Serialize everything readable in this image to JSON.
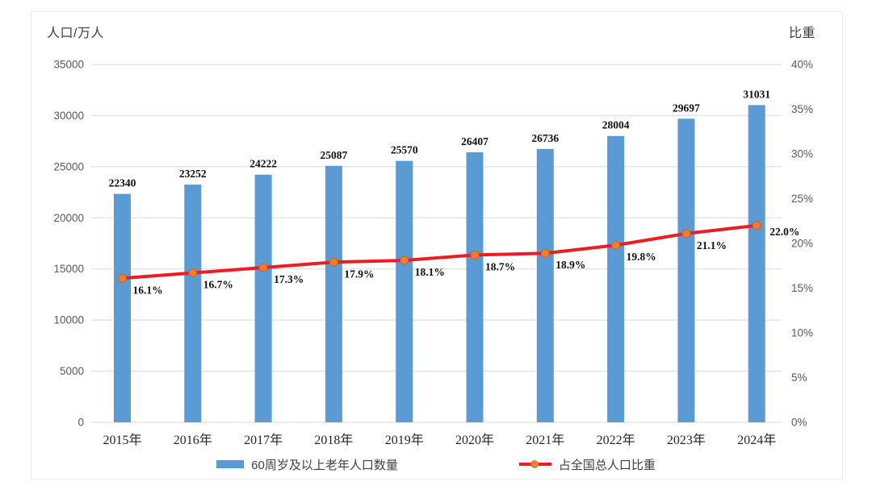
{
  "chart_data": {
    "type": "bar+line",
    "categories": [
      "2015年",
      "2016年",
      "2017年",
      "2018年",
      "2019年",
      "2020年",
      "2021年",
      "2022年",
      "2023年",
      "2024年"
    ],
    "series": [
      {
        "name": "60周岁及以上老年人口数量",
        "type": "bar",
        "axis": "left",
        "values": [
          22340,
          23252,
          24222,
          25087,
          25570,
          26407,
          26736,
          28004,
          29697,
          31031
        ],
        "labels": [
          "22340",
          "23252",
          "24222",
          "25087",
          "25570",
          "26407",
          "26736",
          "28004",
          "29697",
          "31031"
        ],
        "color": "#5b9bd5"
      },
      {
        "name": "占全国总人口比重",
        "type": "line",
        "axis": "right",
        "values": [
          16.1,
          16.7,
          17.3,
          17.9,
          18.1,
          18.7,
          18.9,
          19.8,
          21.1,
          22.0
        ],
        "labels": [
          "16.1%",
          "16.7%",
          "17.3%",
          "17.9%",
          "18.1%",
          "18.7%",
          "18.9%",
          "19.8%",
          "21.1%",
          "22.0%"
        ],
        "color": "#ed1c24",
        "marker_color": "#ed7d31"
      }
    ],
    "left_axis": {
      "title": "人口/万人",
      "min": 0,
      "max": 35000,
      "step": 5000,
      "ticks": [
        "35000",
        "30000",
        "25000",
        "20000",
        "15000",
        "10000",
        "5000",
        "0"
      ]
    },
    "right_axis": {
      "title": "比重",
      "min": 0,
      "max": 40,
      "step": 5,
      "ticks": [
        "40%",
        "35%",
        "30%",
        "25%",
        "20%",
        "15%",
        "10%",
        "5%",
        "0%"
      ]
    },
    "grid": true,
    "legend_position": "bottom",
    "colors": {
      "bar": "#5b9bd5",
      "line": "#ed1c24",
      "marker": "#ed7d31",
      "marker_edge": "#c9651f",
      "gridline": "#d9d9d9",
      "tick_text": "#595959",
      "category_text": "#262626",
      "data_label_text": "#111111"
    }
  }
}
